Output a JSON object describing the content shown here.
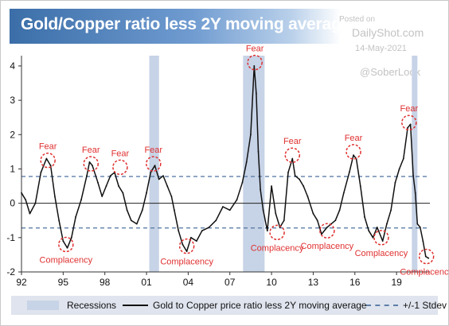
{
  "watermark": {
    "posted_on": "Posted on",
    "site": "DailyShot.com",
    "date": "14-May-2021",
    "handle": "@SoberLook"
  },
  "chart_data": {
    "type": "line",
    "title": "Gold/Copper ratio less 2Y moving average",
    "xlabel": "",
    "ylabel": "",
    "xlim": [
      1992,
      2021.4
    ],
    "ylim": [
      -2,
      4.3
    ],
    "x_ticks": [
      "92",
      "95",
      "98",
      "01",
      "04",
      "07",
      "10",
      "13",
      "16",
      "19"
    ],
    "x_tick_values": [
      1992,
      1995,
      1998,
      2001,
      2004,
      2007,
      2010,
      2013,
      2016,
      2019
    ],
    "y_ticks": [
      -2,
      -1,
      0,
      1,
      2,
      3,
      4
    ],
    "grid": false,
    "legend": {
      "placement": "bottom",
      "entries": [
        "Recessions",
        "Gold to Copper price ratio less 2Y moving average",
        "+/-1 Stdev"
      ]
    },
    "colors": {
      "series": "#111111",
      "recession": "#c7d3e6",
      "stdev": "#5e7fa8",
      "annotation": "#e03030"
    },
    "recessions": [
      [
        2001.2,
        2001.9
      ],
      [
        2007.95,
        2009.5
      ],
      [
        2020.1,
        2020.5
      ]
    ],
    "stdev_bands": [
      0.78,
      -0.72
    ],
    "series": [
      {
        "name": "Gold to Copper price ratio less 2Y moving average",
        "x": [
          1992.0,
          1992.3,
          1992.6,
          1993.0,
          1993.4,
          1993.8,
          1994.1,
          1994.4,
          1994.7,
          1995.0,
          1995.3,
          1995.6,
          1995.9,
          1996.3,
          1996.7,
          1996.9,
          1997.1,
          1997.5,
          1997.8,
          1998.1,
          1998.4,
          1998.7,
          1999.0,
          1999.3,
          1999.6,
          1999.9,
          2000.3,
          2000.7,
          2001.0,
          2001.3,
          2001.6,
          2001.9,
          2002.2,
          2002.5,
          2002.8,
          2003.0,
          2003.3,
          2003.6,
          2003.9,
          2004.2,
          2004.6,
          2005.0,
          2005.5,
          2006.0,
          2006.5,
          2007.0,
          2007.5,
          2007.9,
          2008.2,
          2008.5,
          2008.75,
          2008.9,
          2009.05,
          2009.2,
          2009.4,
          2009.7,
          2010.0,
          2010.3,
          2010.6,
          2010.9,
          2011.2,
          2011.5,
          2011.7,
          2012.0,
          2012.3,
          2012.6,
          2013.0,
          2013.3,
          2013.6,
          2014.0,
          2014.3,
          2014.6,
          2014.9,
          2015.2,
          2015.6,
          2015.9,
          2016.1,
          2016.4,
          2016.7,
          2017.0,
          2017.3,
          2017.6,
          2018.0,
          2018.3,
          2018.6,
          2018.9,
          2019.2,
          2019.5,
          2019.8,
          2020.0,
          2020.2,
          2020.35,
          2020.5,
          2020.7,
          2020.9,
          2021.1,
          2021.3
        ],
        "values": [
          0.3,
          0.1,
          -0.3,
          0.0,
          0.9,
          1.3,
          1.1,
          0.2,
          -0.5,
          -1.1,
          -1.3,
          -1.0,
          -0.4,
          0.1,
          0.8,
          1.2,
          1.1,
          0.6,
          0.2,
          0.5,
          0.8,
          0.9,
          0.5,
          0.3,
          -0.2,
          -0.5,
          -0.6,
          -0.2,
          0.3,
          0.9,
          1.1,
          0.7,
          0.8,
          0.5,
          0.2,
          -0.2,
          -0.8,
          -1.2,
          -1.4,
          -1.0,
          -1.1,
          -0.8,
          -0.7,
          -0.5,
          -0.1,
          -0.2,
          0.1,
          0.6,
          1.2,
          2.0,
          4.0,
          3.2,
          1.5,
          0.4,
          -0.2,
          -0.8,
          0.5,
          -0.3,
          -0.7,
          -0.5,
          0.9,
          1.3,
          0.8,
          0.7,
          0.5,
          0.2,
          -0.3,
          -0.5,
          -0.9,
          -0.7,
          -0.6,
          -0.5,
          -0.2,
          0.3,
          0.9,
          1.4,
          1.3,
          0.5,
          -0.4,
          -0.8,
          -1.0,
          -0.7,
          -1.1,
          -0.6,
          -0.2,
          0.6,
          1.0,
          1.3,
          2.2,
          2.3,
          0.8,
          0.3,
          -0.6,
          -0.7,
          -1.1,
          -1.55,
          -1.6
        ]
      }
    ],
    "annotations": [
      {
        "text": "Fear",
        "x": 1993.9,
        "y": 1.25
      },
      {
        "text": "Fear",
        "x": 1997.0,
        "y": 1.15
      },
      {
        "text": "Fear",
        "x": 1999.1,
        "y": 1.05
      },
      {
        "text": "Fear",
        "x": 2001.5,
        "y": 1.15
      },
      {
        "text": "Fear",
        "x": 2008.8,
        "y": 4.1
      },
      {
        "text": "Fear",
        "x": 2011.5,
        "y": 1.4
      },
      {
        "text": "Fear",
        "x": 2015.9,
        "y": 1.5
      },
      {
        "text": "Fear",
        "x": 2019.9,
        "y": 2.35
      },
      {
        "text": "Complacency",
        "x": 1995.2,
        "y": -1.2
      },
      {
        "text": "Complacency",
        "x": 2003.9,
        "y": -1.25
      },
      {
        "text": "Complacency",
        "x": 2010.4,
        "y": -0.85
      },
      {
        "text": "Complacency",
        "x": 2014.0,
        "y": -0.8
      },
      {
        "text": "Complacency",
        "x": 2017.9,
        "y": -1.0
      },
      {
        "text": "Complacency",
        "x": 2021.15,
        "y": -1.55
      }
    ]
  }
}
